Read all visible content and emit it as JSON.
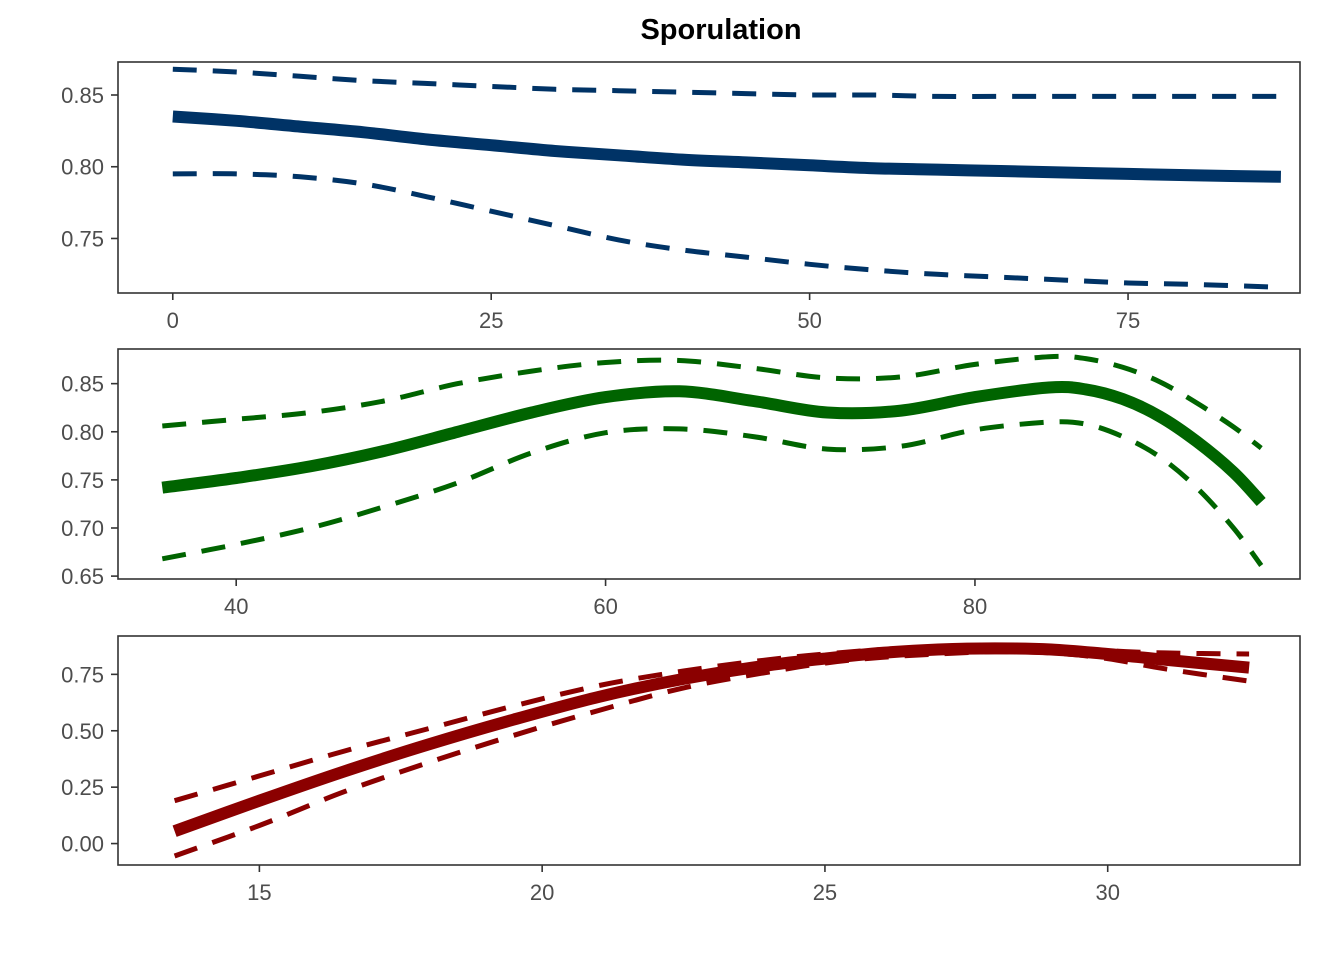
{
  "title": "Sporulation",
  "colors": {
    "panel1": "#003366",
    "panel2": "#006400",
    "panel3": "#8b0000"
  },
  "chart_data": [
    {
      "type": "line",
      "title": "Sporulation",
      "xlim": [
        -4.3,
        88.5
      ],
      "ylim": [
        0.712,
        0.873
      ],
      "xticks": [
        0,
        25,
        50,
        75
      ],
      "yticks": [
        0.75,
        0.8,
        0.85
      ],
      "xtick_labels": [
        "0",
        "25",
        "50",
        "75"
      ],
      "ytick_labels": [
        "0.75",
        "0.80",
        "0.85"
      ],
      "grid": false,
      "color": "#003366",
      "x": [
        0,
        5,
        10,
        15,
        20,
        25,
        30,
        35,
        40,
        45,
        50,
        55,
        60,
        65,
        70,
        75,
        80,
        87
      ],
      "series": [
        {
          "role": "fit",
          "values": [
            0.835,
            0.832,
            0.828,
            0.824,
            0.819,
            0.815,
            0.811,
            0.808,
            0.805,
            0.803,
            0.801,
            0.799,
            0.798,
            0.797,
            0.796,
            0.795,
            0.794,
            0.793
          ]
        },
        {
          "role": "upper",
          "values": [
            0.868,
            0.866,
            0.863,
            0.86,
            0.858,
            0.856,
            0.854,
            0.853,
            0.852,
            0.851,
            0.85,
            0.85,
            0.849,
            0.849,
            0.849,
            0.849,
            0.849,
            0.849
          ]
        },
        {
          "role": "lower",
          "values": [
            0.795,
            0.795,
            0.793,
            0.788,
            0.779,
            0.769,
            0.759,
            0.749,
            0.742,
            0.737,
            0.732,
            0.728,
            0.725,
            0.723,
            0.721,
            0.719,
            0.718,
            0.716
          ]
        }
      ]
    },
    {
      "type": "line",
      "xlim": [
        33.6,
        97.6
      ],
      "ylim": [
        0.647,
        0.886
      ],
      "xticks": [
        40,
        60,
        80
      ],
      "yticks": [
        0.65,
        0.7,
        0.75,
        0.8,
        0.85
      ],
      "xtick_labels": [
        "40",
        "60",
        "80"
      ],
      "ytick_labels": [
        "0.65",
        "0.70",
        "0.75",
        "0.80",
        "0.85"
      ],
      "grid": false,
      "color": "#006400",
      "x": [
        36,
        40,
        44,
        48,
        52,
        56,
        60,
        64,
        68,
        72,
        76,
        80,
        84,
        86,
        88,
        90,
        92,
        94,
        95.5
      ],
      "series": [
        {
          "role": "fit",
          "values": [
            0.742,
            0.752,
            0.764,
            0.78,
            0.8,
            0.82,
            0.836,
            0.842,
            0.832,
            0.82,
            0.822,
            0.836,
            0.846,
            0.844,
            0.834,
            0.816,
            0.79,
            0.758,
            0.727
          ]
        },
        {
          "role": "upper",
          "values": [
            0.806,
            0.813,
            0.82,
            0.832,
            0.85,
            0.863,
            0.872,
            0.874,
            0.866,
            0.856,
            0.857,
            0.87,
            0.878,
            0.876,
            0.867,
            0.852,
            0.83,
            0.805,
            0.783
          ]
        },
        {
          "role": "lower",
          "values": [
            0.668,
            0.683,
            0.7,
            0.722,
            0.747,
            0.778,
            0.799,
            0.803,
            0.795,
            0.782,
            0.785,
            0.802,
            0.81,
            0.808,
            0.795,
            0.774,
            0.742,
            0.7,
            0.661
          ]
        }
      ]
    },
    {
      "type": "line",
      "xlim": [
        12.5,
        33.4
      ],
      "ylim": [
        -0.095,
        0.92
      ],
      "xticks": [
        15,
        20,
        25,
        30
      ],
      "yticks": [
        0.0,
        0.25,
        0.5,
        0.75
      ],
      "xtick_labels": [
        "15",
        "20",
        "25",
        "30"
      ],
      "ytick_labels": [
        "0.00",
        "0.25",
        "0.50",
        "0.75"
      ],
      "grid": false,
      "color": "#8b0000",
      "x": [
        13.5,
        15,
        16.5,
        18,
        19.5,
        21,
        22.5,
        24,
        25,
        26,
        27,
        28,
        29,
        30,
        31,
        32.5
      ],
      "series": [
        {
          "role": "fit",
          "values": [
            0.055,
            0.19,
            0.32,
            0.44,
            0.55,
            0.65,
            0.73,
            0.79,
            0.82,
            0.845,
            0.86,
            0.865,
            0.86,
            0.84,
            0.815,
            0.78
          ]
        },
        {
          "role": "upper",
          "values": [
            0.19,
            0.3,
            0.41,
            0.51,
            0.61,
            0.7,
            0.765,
            0.815,
            0.84,
            0.86,
            0.87,
            0.875,
            0.87,
            0.855,
            0.845,
            0.84
          ]
        },
        {
          "role": "lower",
          "values": [
            -0.055,
            0.08,
            0.23,
            0.36,
            0.48,
            0.59,
            0.69,
            0.76,
            0.8,
            0.825,
            0.84,
            0.85,
            0.845,
            0.82,
            0.775,
            0.72
          ]
        }
      ]
    }
  ]
}
